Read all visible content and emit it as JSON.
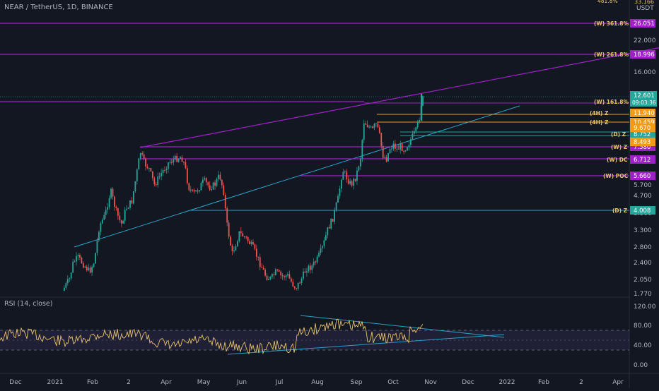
{
  "header": {
    "symbol_title": "NEAR / TetherUS, 1D, BINANCE",
    "currency": "USDT"
  },
  "rsi": {
    "title": "RSI (14, close)",
    "ticks": [
      "120.00",
      "80.00",
      "40.00",
      "0.00"
    ]
  },
  "chart_data": {
    "type": "candlestick",
    "title": "NEAR / TetherUS, 1D, BINANCE",
    "x_ticks": [
      "Dec",
      "2021",
      "Feb",
      "2",
      "Apr",
      "May",
      "Jun",
      "Jul",
      "Aug",
      "Sep",
      "Oct",
      "Nov",
      "Dec",
      "2022",
      "Feb",
      "2",
      "Apr"
    ],
    "y_ticks": [
      "22.000",
      "16.000",
      "5.700",
      "4.700",
      "3.900",
      "3.300",
      "2.800",
      "2.400",
      "2.050",
      "1.770"
    ],
    "level_lines": [
      {
        "label": "(W) 361.8%",
        "value": "26.051",
        "color": "#a020c8"
      },
      {
        "label": "(W) 261.8%",
        "value": "18.996",
        "color": "#a020c8"
      },
      {
        "label": "(W) 161.8%",
        "value": "",
        "color": "#a020c8"
      },
      {
        "label": "(4H) Z",
        "value": "11.940",
        "color": "#f29a18"
      },
      {
        "label": "(4H) Z",
        "value": "10.459",
        "color": "#f29a18"
      },
      {
        "label": "(D) Z",
        "value": "8.752",
        "color": "#26a69a"
      },
      {
        "label": "(W) Z",
        "value": "7.580",
        "color": "#a020c8"
      },
      {
        "label": "(W) DC",
        "value": "6.712",
        "color": "#a020c8"
      },
      {
        "label": "(W) POC",
        "value": "5.660",
        "color": "#a020c8"
      },
      {
        "label": "(D) Z",
        "value": "4.008",
        "color": "#26a69a"
      }
    ],
    "price_tags": [
      {
        "value": "12.601",
        "sub": "09:03:36",
        "color": "#26a69a"
      },
      {
        "value": "9.670",
        "color": "#f29a18"
      },
      {
        "value": "8.493",
        "color": "#f29a18"
      }
    ],
    "partial_top_labels": [
      "33.166",
      "481.8%"
    ],
    "last_price": "12.601",
    "countdown": "09:03:36"
  }
}
